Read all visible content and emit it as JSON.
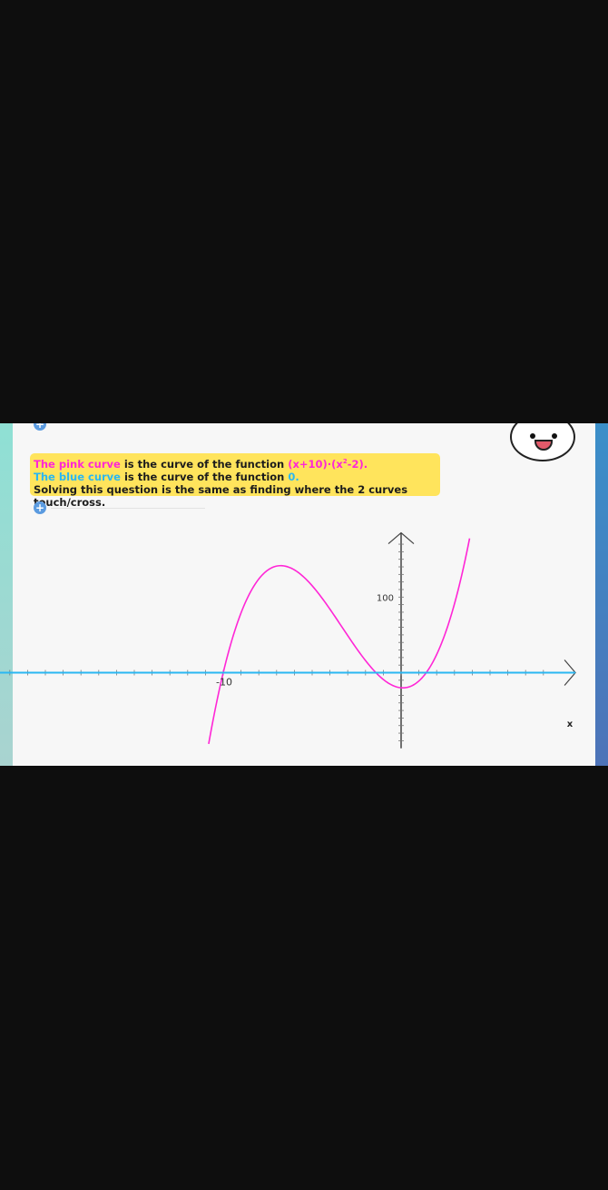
{
  "note": {
    "line1_pink": "The pink curve",
    "line1_text": " is the curve of the function ",
    "line1_formula_a": "(x+10)·(x",
    "line1_formula_exp": "2",
    "line1_formula_b": "-2).",
    "line2_blue": "The blue curve",
    "line2_text": " is the curve of the function ",
    "line2_value": "0.",
    "line3": "Solving this question is the same as finding where the 2 curves touch/cross."
  },
  "icons": {
    "plus": "+",
    "face": "smiley-face-icon"
  },
  "colors": {
    "pink": "#ff26d6",
    "blue": "#2ab7f2",
    "highlight": "#ffe45c"
  },
  "chart_data": {
    "type": "line",
    "series": [
      {
        "function": "(x+10)*(x^2-2)",
        "color": "#ff26d6"
      },
      {
        "function": "0",
        "color": "#2ab7f2"
      }
    ],
    "x_tick_labels": [
      {
        "x": -10,
        "label": "-10"
      }
    ],
    "y_tick_labels": [
      {
        "y": 100,
        "label": "100"
      }
    ],
    "xlabel": "x",
    "xlim": [
      -22.8,
      9.8
    ],
    "ylim": [
      -100,
      185
    ],
    "grid": false
  }
}
